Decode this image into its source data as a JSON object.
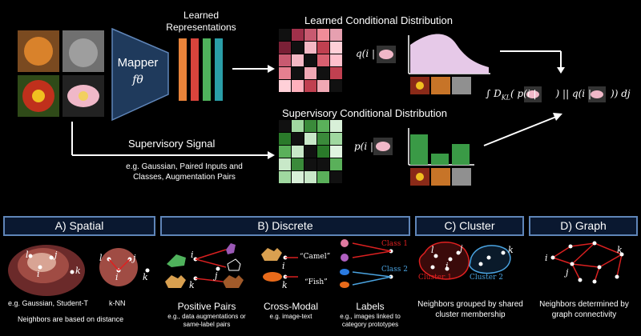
{
  "top": {
    "mapper_label": "Mapper",
    "mapper_fn": "fθ",
    "learned_repr": "Learned Representations",
    "learned_cond_title": "Learned Conditional Distribution",
    "learned_q": "q(i |",
    "supervisory_cond_title": "Supervisory Conditional Distribution",
    "sup_p": "p(i |",
    "supervisory_signal": "Supervisory Signal",
    "supervisory_examples": "e.g. Gaussian, Paired Inputs and Classes, Augmentation Pairs",
    "kl_prefix": "∫ D",
    "kl_sub": "KL",
    "kl_mid1": "( p(i |",
    "kl_mid2": ") || q(i |",
    "kl_suffix": ")) dj"
  },
  "panels": {
    "spatial": {
      "title": "A) Spatial",
      "sub1": "e.g. Gaussian, Student-T",
      "sub2": "k-NN",
      "note": "Neighbors are based on distance",
      "labels": [
        "l",
        "j",
        "i",
        "k",
        "l",
        "j",
        "i",
        "k"
      ]
    },
    "discrete": {
      "title": "B) Discrete",
      "positive_title": "Positive Pairs",
      "positive_sub": "e.g., data augmentations or same-label pairs",
      "crossmodal_title": "Cross-Modal",
      "crossmodal_sub": "e.g. image-text",
      "labels_title": "Labels",
      "labels_sub": "e.g., images linked to category prototypes",
      "camel": "“Camel”",
      "fish": "“Fish”",
      "class1": "Class 1",
      "class2": "Class 2",
      "node_labels": [
        "i",
        "j",
        "k",
        "i",
        "k"
      ]
    },
    "cluster": {
      "title": "C) Cluster",
      "cluster1": "Cluster 1",
      "cluster2": "Cluster 2",
      "note": "Neighbors grouped by shared cluster membership",
      "labels": [
        "l",
        "i",
        "j",
        "k"
      ]
    },
    "graph": {
      "title": "D) Graph",
      "note": "Neighbors determined by graph connectivity",
      "labels": [
        "i",
        "j",
        "k"
      ]
    }
  },
  "colors": {
    "accent_blue": "#5f85b8",
    "bar_orange": "#e8833a",
    "bar_red": "#d9443c",
    "bar_green": "#4fb25c",
    "bar_teal": "#2a9ea8",
    "learned_fill": "#e6c9e8",
    "sup_green": "#3a9a46",
    "red_line": "#d92020",
    "blue_line": "#4aa3e0"
  }
}
